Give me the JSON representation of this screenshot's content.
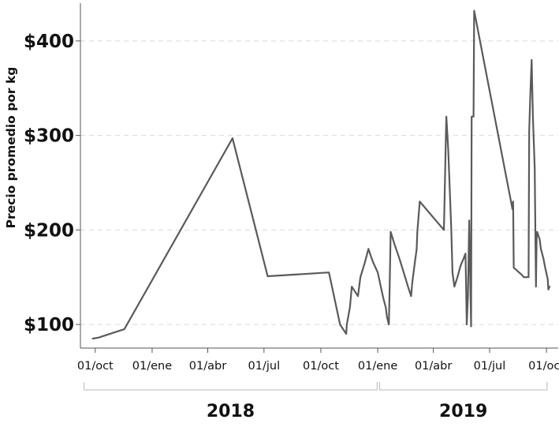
{
  "chart_data": {
    "type": "line",
    "title": "",
    "xlabel": "",
    "ylabel": "Precio promedio por kg",
    "ylim": [
      75,
      440
    ],
    "xlim": [
      "2017-09-07",
      "2019-10-20"
    ],
    "grid": "horizontal dashed",
    "colors": {
      "line": "#5a5a5a",
      "axis": "#555555",
      "grid": "#d9d9d9"
    },
    "y_ticks": [
      {
        "value": 100,
        "label": "$100"
      },
      {
        "value": 200,
        "label": "$200"
      },
      {
        "value": 300,
        "label": "$300"
      },
      {
        "value": 400,
        "label": "$400"
      }
    ],
    "x_ticks": [
      {
        "date": "2017-10-01",
        "label": "01/oct"
      },
      {
        "date": "2018-01-01",
        "label": "01/ene"
      },
      {
        "date": "2018-04-01",
        "label": "01/abr"
      },
      {
        "date": "2018-07-01",
        "label": "01/jul"
      },
      {
        "date": "2018-10-01",
        "label": "01/oct"
      },
      {
        "date": "2019-01-01",
        "label": "01/ene"
      },
      {
        "date": "2019-04-01",
        "label": "01/abr"
      },
      {
        "date": "2019-07-01",
        "label": "01/jul"
      },
      {
        "date": "2019-10-01",
        "label": "01/oct"
      }
    ],
    "year_groups": [
      {
        "label": "2018",
        "start": "2017-09-13",
        "end": "2018-12-31"
      },
      {
        "label": "2019",
        "start": "2019-01-04",
        "end": "2019-10-02"
      }
    ],
    "series": [
      {
        "points": [
          [
            "2017-09-27",
            85
          ],
          [
            "2017-10-06",
            86
          ],
          [
            "2017-11-17",
            95
          ],
          [
            "2018-05-11",
            297
          ],
          [
            "2018-07-07",
            151
          ],
          [
            "2018-10-14",
            155
          ],
          [
            "2018-11-01",
            100
          ],
          [
            "2018-11-11",
            90
          ],
          [
            "2018-11-12",
            100
          ],
          [
            "2018-11-17",
            118
          ],
          [
            "2018-11-20",
            140
          ],
          [
            "2018-11-25",
            135
          ],
          [
            "2018-11-30",
            130
          ],
          [
            "2018-12-04",
            150
          ],
          [
            "2018-12-11",
            165
          ],
          [
            "2018-12-17",
            180
          ],
          [
            "2018-12-21",
            172
          ],
          [
            "2018-12-25",
            165
          ],
          [
            "2019-01-01",
            155
          ],
          [
            "2019-01-06",
            140
          ],
          [
            "2019-01-10",
            128
          ],
          [
            "2019-01-14",
            118
          ],
          [
            "2019-01-16",
            108
          ],
          [
            "2019-01-19",
            100
          ],
          [
            "2019-01-20",
            130
          ],
          [
            "2019-01-22",
            198
          ],
          [
            "2019-01-28",
            185
          ],
          [
            "2019-02-05",
            170
          ],
          [
            "2019-02-12",
            155
          ],
          [
            "2019-02-19",
            140
          ],
          [
            "2019-02-24",
            130
          ],
          [
            "2019-02-26",
            145
          ],
          [
            "2019-03-02",
            165
          ],
          [
            "2019-03-05",
            180
          ],
          [
            "2019-03-06",
            198
          ],
          [
            "2019-03-10",
            230
          ],
          [
            "2019-04-18",
            200
          ],
          [
            "2019-04-19",
            230
          ],
          [
            "2019-04-21",
            290
          ],
          [
            "2019-04-22",
            320
          ],
          [
            "2019-04-25",
            285
          ],
          [
            "2019-04-28",
            235
          ],
          [
            "2019-04-30",
            200
          ],
          [
            "2019-05-02",
            155
          ],
          [
            "2019-05-05",
            140
          ],
          [
            "2019-05-10",
            150
          ],
          [
            "2019-05-15",
            162
          ],
          [
            "2019-05-20",
            170
          ],
          [
            "2019-05-23",
            175
          ],
          [
            "2019-05-24",
            140
          ],
          [
            "2019-05-25",
            100
          ],
          [
            "2019-05-27",
            130
          ],
          [
            "2019-05-29",
            210
          ],
          [
            "2019-06-01",
            98
          ],
          [
            "2019-06-02",
            320
          ],
          [
            "2019-06-05",
            320
          ],
          [
            "2019-06-06",
            432
          ],
          [
            "2019-08-07",
            222
          ],
          [
            "2019-08-08",
            230
          ],
          [
            "2019-08-09",
            160
          ],
          [
            "2019-08-23",
            152
          ],
          [
            "2019-08-25",
            150
          ],
          [
            "2019-09-02",
            150
          ],
          [
            "2019-09-03",
            305
          ],
          [
            "2019-09-05",
            345
          ],
          [
            "2019-09-07",
            380
          ],
          [
            "2019-09-09",
            320
          ],
          [
            "2019-09-12",
            265
          ],
          [
            "2019-09-13",
            200
          ],
          [
            "2019-09-14",
            140
          ],
          [
            "2019-09-15",
            190
          ],
          [
            "2019-09-16",
            198
          ],
          [
            "2019-09-20",
            190
          ],
          [
            "2019-09-22",
            180
          ],
          [
            "2019-09-26",
            170
          ],
          [
            "2019-09-29",
            160
          ],
          [
            "2019-10-03",
            148
          ],
          [
            "2019-10-04",
            137
          ],
          [
            "2019-10-06",
            140
          ]
        ]
      }
    ]
  }
}
